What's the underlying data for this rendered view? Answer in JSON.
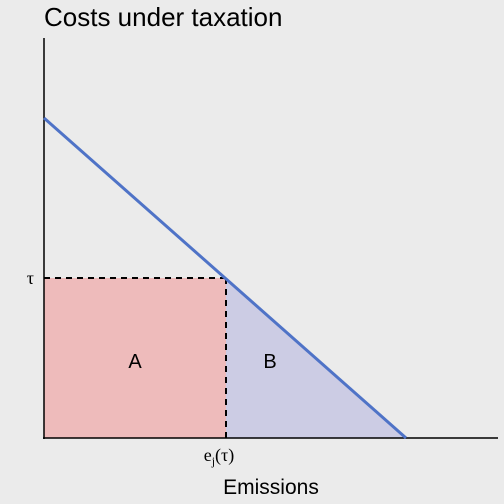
{
  "title": "Costs under taxation",
  "xlabel": "Emissions",
  "y_tick": {
    "text": "τ"
  },
  "x_tick": {
    "base": "e",
    "sub": "j",
    "arg": "(τ)"
  },
  "regions": [
    {
      "label": "A",
      "color": "#eebbbb"
    },
    {
      "label": "B",
      "color": "#cccce4"
    }
  ],
  "colors": {
    "background": "#ebebeb",
    "line": "#4f73c7",
    "axes": "#000000"
  }
}
